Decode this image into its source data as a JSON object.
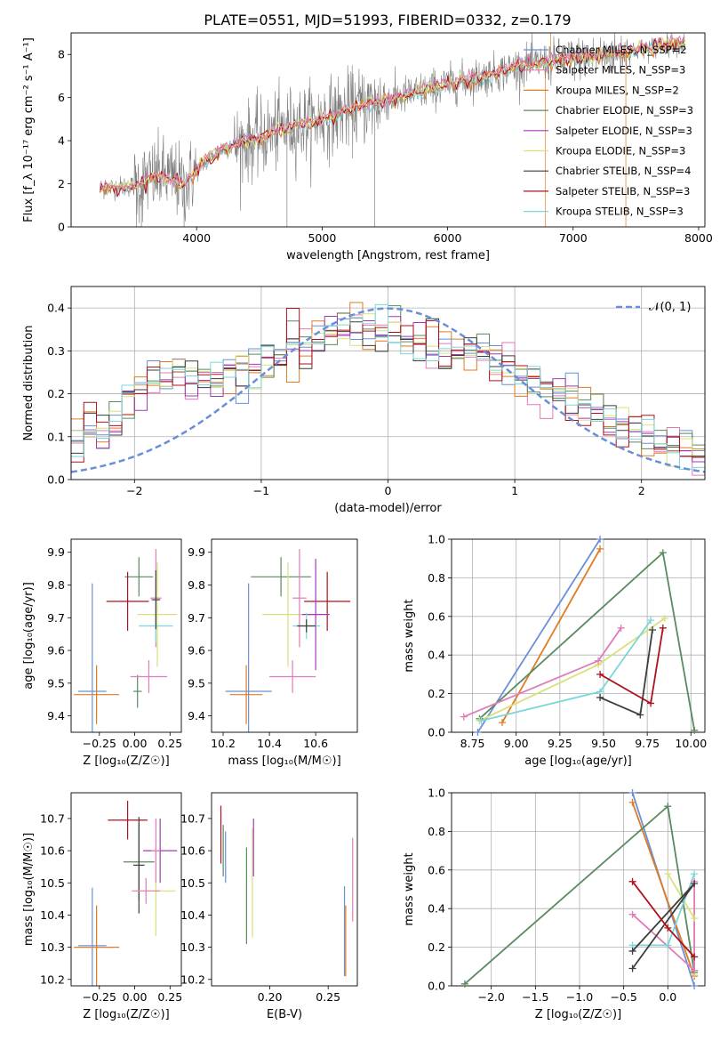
{
  "title": "PLATE=0551, MJD=51993, FIBERID=0332, z=0.179",
  "colors": {
    "blue": "#6a8fd9",
    "orange": "#e07b22",
    "green": "#5a8a60",
    "pink": "#e07cb8",
    "purple": "#a23ab8",
    "yellow": "#d9e07c",
    "black": "#3d3d3d",
    "red": "#b0121b",
    "cyan": "#7cd6d8",
    "data_gray": "#808080"
  },
  "chart_data": [
    {
      "id": "spectrum",
      "type": "line",
      "xlabel": "wavelength [Angstrom, rest frame]",
      "ylabel": "Flux [f_λ 10⁻¹⁷ erg cm⁻² s⁻¹ A⁻¹]",
      "xlim": [
        3000,
        8050
      ],
      "ylim": [
        0,
        9
      ],
      "xticks": [
        4000,
        5000,
        6000,
        7000,
        8000
      ],
      "yticks": [
        0,
        2,
        4,
        6,
        8
      ],
      "grid": false,
      "legend_position": "top-right",
      "legend": [
        "Chabrier MILES, N_SSP=2",
        "Salpeter MILES, N_SSP=3",
        "Kroupa MILES, N_SSP=2",
        "Chabrier ELODIE, N_SSP=3",
        "Salpeter ELODIE, N_SSP=3",
        "Kroupa ELODIE, N_SSP=3",
        "Chabrier STELIB, N_SSP=4",
        "Salpeter STELIB, N_SSP=3",
        "Kroupa STELIB, N_SSP=3"
      ],
      "legend_colors": [
        "#6a8fd9",
        "#e07cb8",
        "#e07b22",
        "#5a8a60",
        "#a23ab8",
        "#d9e07c",
        "#3d3d3d",
        "#b0121b",
        "#7cd6d8"
      ],
      "continuum": {
        "x": [
          3250,
          3500,
          3700,
          3800,
          3900,
          4000,
          4100,
          4200,
          4300,
          4500,
          4700,
          5000,
          5300,
          5600,
          6000,
          6300,
          6600,
          7000,
          7300,
          7800
        ],
        "y": [
          1.8,
          1.9,
          2.4,
          2.3,
          1.9,
          2.6,
          3.2,
          3.6,
          3.8,
          4.1,
          4.6,
          5.0,
          5.6,
          6.0,
          6.6,
          7.0,
          7.5,
          7.8,
          8.0,
          8.5
        ]
      }
    },
    {
      "id": "residuals",
      "type": "histogram",
      "xlabel": "(data-model)/error",
      "ylabel": "Normed distribution",
      "xlim": [
        -2.5,
        2.5
      ],
      "ylim": [
        0,
        0.45
      ],
      "xticks": [
        -2,
        -1,
        0,
        1,
        2
      ],
      "yticks": [
        0.0,
        0.1,
        0.2,
        0.3,
        0.4
      ],
      "grid": true,
      "legend_position": "top-right",
      "legend": [
        "𝒩(0, 1)"
      ],
      "bin_width": 0.1,
      "envelope": [
        0.06,
        0.07,
        0.07,
        0.08,
        0.09,
        0.1,
        0.12,
        0.14,
        0.16,
        0.19,
        0.21,
        0.23,
        0.24,
        0.25,
        0.24,
        0.24,
        0.23,
        0.25,
        0.25,
        0.26,
        0.28,
        0.3,
        0.32,
        0.33,
        0.33,
        0.35,
        0.36,
        0.36,
        0.36,
        0.36,
        0.35,
        0.33,
        0.33,
        0.32,
        0.31,
        0.3,
        0.29,
        0.28,
        0.27,
        0.26,
        0.24,
        0.22,
        0.21,
        0.2,
        0.19,
        0.17,
        0.15,
        0.13,
        0.12,
        0.11,
        0.1,
        0.09,
        0.08,
        0.07,
        0.07,
        0.06,
        0.05,
        0.05,
        0.04,
        0.04
      ]
    },
    {
      "id": "age-vs-Z",
      "type": "errorbar",
      "xlabel": "Z [log₁₀(Z/Z☉)]",
      "ylabel": "age  [log₁₀(age/yr)]",
      "xlim": [
        -0.45,
        0.33
      ],
      "ylim": [
        9.35,
        9.94
      ],
      "xticks": [
        -0.25,
        0.0,
        0.25
      ],
      "xticklabels": [
        "−0.25",
        "0.00",
        "0.25"
      ],
      "yticks": [
        9.4,
        9.5,
        9.6,
        9.7,
        9.8,
        9.9
      ],
      "points": [
        {
          "x": -0.3,
          "xerr": 0.1,
          "y": 9.475,
          "yerr": 0.33,
          "color": "#6a8fd9"
        },
        {
          "x": -0.27,
          "xerr": 0.16,
          "y": 9.465,
          "yerr": 0.09,
          "color": "#e07b22"
        },
        {
          "x": 0.03,
          "xerr": 0.1,
          "y": 9.825,
          "yerr": 0.06,
          "color": "#5a8a60"
        },
        {
          "x": 0.02,
          "xerr": 0.03,
          "y": 9.475,
          "yerr": 0.05,
          "color": "#5a8a60"
        },
        {
          "x": -0.05,
          "xerr": 0.15,
          "y": 9.75,
          "yerr": 0.09,
          "color": "#b0121b"
        },
        {
          "x": 0.16,
          "xerr": 0.14,
          "y": 9.71,
          "yerr": 0.16,
          "color": "#d9e07c"
        },
        {
          "x": 0.1,
          "xerr": 0.13,
          "y": 9.52,
          "yerr": 0.05,
          "color": "#e07cb8"
        },
        {
          "x": 0.15,
          "xerr": 0.04,
          "y": 9.76,
          "yerr": 0.15,
          "color": "#e07cb8"
        },
        {
          "x": 0.15,
          "xerr": 0.12,
          "y": 9.675,
          "yerr": 0.05,
          "color": "#7cd6d8"
        },
        {
          "x": 0.15,
          "xerr": 0.03,
          "y": 9.755,
          "yerr": 0.09,
          "color": "#3d3d3d"
        }
      ]
    },
    {
      "id": "age-vs-mass",
      "type": "errorbar",
      "xlabel": "mass [log₁₀(M/M☉)]",
      "ylabel": "",
      "xlim": [
        10.15,
        10.78
      ],
      "ylim": [
        9.35,
        9.94
      ],
      "xticks": [
        10.2,
        10.4,
        10.6
      ],
      "yticks": [
        9.4,
        9.5,
        9.6,
        9.7,
        9.8,
        9.9
      ],
      "points": [
        {
          "x": 10.31,
          "xerr": 0.1,
          "y": 9.475,
          "yerr": 0.33,
          "color": "#6a8fd9"
        },
        {
          "x": 10.3,
          "xerr": 0.07,
          "y": 9.465,
          "yerr": 0.09,
          "color": "#e07b22"
        },
        {
          "x": 10.45,
          "xerr": 0.13,
          "y": 9.825,
          "yerr": 0.06,
          "color": "#5a8a60"
        },
        {
          "x": 10.65,
          "xerr": 0.1,
          "y": 9.75,
          "yerr": 0.09,
          "color": "#b0121b"
        },
        {
          "x": 10.48,
          "xerr": 0.11,
          "y": 9.71,
          "yerr": 0.16,
          "color": "#d9e07c"
        },
        {
          "x": 10.5,
          "xerr": 0.1,
          "y": 9.52,
          "yerr": 0.05,
          "color": "#e07cb8"
        },
        {
          "x": 10.53,
          "xerr": 0.03,
          "y": 9.76,
          "yerr": 0.15,
          "color": "#e07cb8"
        },
        {
          "x": 10.6,
          "xerr": 0.06,
          "y": 9.71,
          "yerr": 0.17,
          "color": "#a23ab8"
        },
        {
          "x": 10.56,
          "xerr": 0.06,
          "y": 9.675,
          "yerr": 0.04,
          "color": "#7cd6d8"
        },
        {
          "x": 10.56,
          "xerr": 0.04,
          "y": 9.675,
          "yerr": 0.02,
          "color": "#3d3d3d"
        }
      ]
    },
    {
      "id": "massweight-vs-age",
      "type": "line",
      "xlabel": "age  [log₁₀(age/yr)]",
      "ylabel": "mass weight",
      "xlim": [
        8.63,
        10.08
      ],
      "ylim": [
        0,
        1.0
      ],
      "xticks": [
        8.75,
        9.0,
        9.25,
        9.5,
        9.75,
        10.0
      ],
      "xticklabels": [
        "8.75",
        "9.00",
        "9.25",
        "9.50",
        "9.75",
        "10.00"
      ],
      "yticks": [
        0.0,
        0.2,
        0.4,
        0.6,
        0.8,
        1.0
      ],
      "grid": true,
      "series": [
        {
          "color": "#6a8fd9",
          "x": [
            8.78,
            9.48
          ],
          "y": [
            0.0,
            1.0
          ]
        },
        {
          "color": "#e07b22",
          "x": [
            8.92,
            9.48
          ],
          "y": [
            0.05,
            0.95
          ]
        },
        {
          "color": "#5a8a60",
          "x": [
            8.79,
            9.84,
            10.02
          ],
          "y": [
            0.07,
            0.93,
            0.01
          ]
        },
        {
          "color": "#d9e07c",
          "x": [
            8.79,
            9.47,
            9.85
          ],
          "y": [
            0.06,
            0.35,
            0.59
          ]
        },
        {
          "color": "#e07cb8",
          "x": [
            8.7,
            9.47,
            9.6
          ],
          "y": [
            0.08,
            0.37,
            0.54
          ]
        },
        {
          "color": "#7cd6d8",
          "x": [
            8.8,
            9.48,
            9.77
          ],
          "y": [
            0.06,
            0.21,
            0.58
          ]
        },
        {
          "color": "#3d3d3d",
          "x": [
            9.48,
            9.71,
            9.78
          ],
          "y": [
            0.18,
            0.09,
            0.53
          ]
        },
        {
          "color": "#b0121b",
          "x": [
            9.48,
            9.77,
            9.84
          ],
          "y": [
            0.3,
            0.15,
            0.54
          ]
        }
      ]
    },
    {
      "id": "mass-vs-Z",
      "type": "errorbar",
      "xlabel": "Z [log₁₀(Z/Z☉)]",
      "ylabel": "mass [log₁₀(M/M☉)]",
      "xlim": [
        -0.45,
        0.33
      ],
      "ylim": [
        10.18,
        10.78
      ],
      "xticks": [
        -0.25,
        0.0,
        0.25
      ],
      "xticklabels": [
        "−0.25",
        "0.00",
        "0.25"
      ],
      "yticks": [
        10.2,
        10.3,
        10.4,
        10.5,
        10.6,
        10.7
      ],
      "points": [
        {
          "x": -0.3,
          "xerr": 0.1,
          "y": 10.305,
          "yerr": 0.18,
          "color": "#6a8fd9"
        },
        {
          "x": -0.27,
          "xerr": 0.16,
          "y": 10.3,
          "yerr": 0.13,
          "color": "#e07b22"
        },
        {
          "x": 0.03,
          "xerr": 0.11,
          "y": 10.565,
          "yerr": 0.12,
          "color": "#5a8a60"
        },
        {
          "x": 0.03,
          "xerr": 0.04,
          "y": 10.555,
          "yerr": 0.15,
          "color": "#3d3d3d"
        },
        {
          "x": -0.05,
          "xerr": 0.14,
          "y": 10.695,
          "yerr": 0.06,
          "color": "#b0121b"
        },
        {
          "x": 0.15,
          "xerr": 0.14,
          "y": 10.475,
          "yerr": 0.14,
          "color": "#d9e07c"
        },
        {
          "x": 0.08,
          "xerr": 0.1,
          "y": 10.475,
          "yerr": 0.04,
          "color": "#e07cb8"
        },
        {
          "x": 0.18,
          "xerr": 0.12,
          "y": 10.6,
          "yerr": 0.1,
          "color": "#a23ab8"
        },
        {
          "x": 0.15,
          "xerr": 0.03,
          "y": 10.6,
          "yerr": 0.1,
          "color": "#e07cb8"
        }
      ]
    },
    {
      "id": "mass-vs-EBV",
      "type": "errorbar",
      "xlabel": "E(B-V)",
      "ylabel": "",
      "xlim": [
        0.15,
        0.275
      ],
      "ylim": [
        10.18,
        10.78
      ],
      "xticks": [
        0.2,
        0.25
      ],
      "xticklabels": [
        "0.20",
        "0.25"
      ],
      "yticks": [
        10.2,
        10.3,
        10.4,
        10.5,
        10.6,
        10.7
      ],
      "points": [
        {
          "x": 0.158,
          "y": 10.65,
          "yerr": 0.09,
          "color": "#b0121b"
        },
        {
          "x": 0.16,
          "y": 10.6,
          "yerr": 0.08,
          "color": "#5a8a60"
        },
        {
          "x": 0.162,
          "y": 10.58,
          "yerr": 0.08,
          "color": "#6a8fd9"
        },
        {
          "x": 0.18,
          "y": 10.46,
          "yerr": 0.15,
          "color": "#5a8a60"
        },
        {
          "x": 0.185,
          "y": 10.5,
          "yerr": 0.17,
          "color": "#d9e07c"
        },
        {
          "x": 0.186,
          "y": 10.61,
          "yerr": 0.09,
          "color": "#a23ab8"
        },
        {
          "x": 0.264,
          "y": 10.35,
          "yerr": 0.14,
          "color": "#6a8fd9"
        },
        {
          "x": 0.265,
          "y": 10.32,
          "yerr": 0.11,
          "color": "#e07b22"
        },
        {
          "x": 0.271,
          "y": 10.51,
          "yerr": 0.13,
          "color": "#e07cb8"
        }
      ]
    },
    {
      "id": "massweight-vs-Z",
      "type": "line",
      "xlabel": "Z [log₁₀(Z/Z☉)]",
      "ylabel": "mass weight",
      "xlim": [
        -2.45,
        0.42
      ],
      "ylim": [
        0,
        1.0
      ],
      "xticks": [
        -2.0,
        -1.5,
        -1.0,
        -0.5,
        0.0
      ],
      "xticklabels": [
        "−2.0",
        "−1.5",
        "−1.0",
        "−0.5",
        "0.0"
      ],
      "yticks": [
        0.0,
        0.2,
        0.4,
        0.6,
        0.8,
        1.0
      ],
      "grid": true,
      "series": [
        {
          "color": "#6a8fd9",
          "x": [
            -0.4,
            0.3
          ],
          "y": [
            1.0,
            0.0
          ]
        },
        {
          "color": "#e07b22",
          "x": [
            -0.4,
            0.3
          ],
          "y": [
            0.95,
            0.05
          ]
        },
        {
          "color": "#5a8a60",
          "x": [
            -2.3,
            0.0,
            0.3
          ],
          "y": [
            0.01,
            0.93,
            0.07
          ]
        },
        {
          "color": "#d9e07c",
          "x": [
            0.0,
            0.3,
            0.3
          ],
          "y": [
            0.58,
            0.35,
            0.06
          ]
        },
        {
          "color": "#e07cb8",
          "x": [
            -0.4,
            0.3,
            0.3
          ],
          "y": [
            0.37,
            0.08,
            0.54
          ]
        },
        {
          "color": "#7cd6d8",
          "x": [
            -0.4,
            0.0,
            0.3
          ],
          "y": [
            0.21,
            0.21,
            0.58
          ]
        },
        {
          "color": "#3d3d3d",
          "x": [
            -0.4,
            0.3,
            -0.4
          ],
          "y": [
            0.09,
            0.53,
            0.18
          ]
        },
        {
          "color": "#b0121b",
          "x": [
            -0.4,
            0.0,
            0.3
          ],
          "y": [
            0.54,
            0.3,
            0.15
          ]
        }
      ]
    }
  ]
}
